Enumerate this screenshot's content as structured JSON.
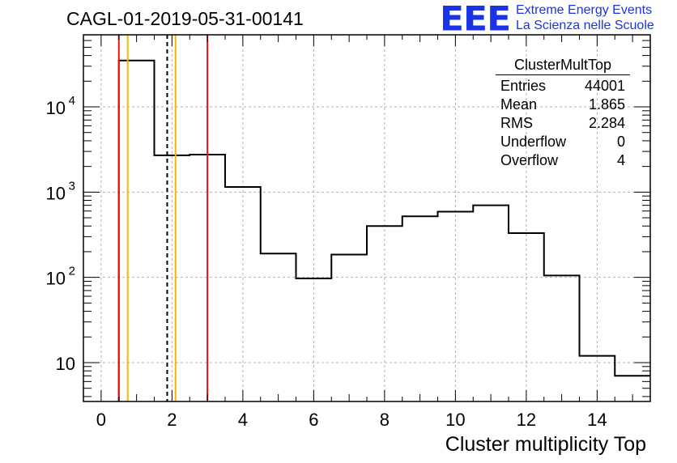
{
  "header": {
    "title": "CAGL-01-2019-05-31-00141",
    "logo_text": "EEE",
    "tagline_1": "Extreme Energy Events",
    "tagline_2": "La Scienza nelle Scuole"
  },
  "stats_box": {
    "title": "ClusterMultTop",
    "rows": [
      {
        "label": "Entries",
        "value": "44001"
      },
      {
        "label": "Mean",
        "value": "1.865"
      },
      {
        "label": "RMS",
        "value": "2.284"
      },
      {
        "label": "Underflow",
        "value": "0"
      },
      {
        "label": "Overflow",
        "value": "4"
      }
    ]
  },
  "chart_data": {
    "type": "bar",
    "style": "step-histogram",
    "xlabel": "Cluster multiplicity Top",
    "ylabel": "",
    "x_ticks": [
      "0",
      "2",
      "4",
      "6",
      "8",
      "10",
      "12",
      "14"
    ],
    "y_ticks": [
      {
        "value": 10,
        "label": "10",
        "exp": ""
      },
      {
        "value": 100,
        "label": "10",
        "exp": "2"
      },
      {
        "value": 1000,
        "label": "10",
        "exp": "3"
      },
      {
        "value": 10000,
        "label": "10",
        "exp": "4"
      }
    ],
    "xlim": [
      -0.5,
      15.5
    ],
    "ylim": [
      3.5,
      70000
    ],
    "log_y": true,
    "grid": true,
    "bin_edges": [
      0.5,
      1.5,
      2.5,
      3.5,
      4.5,
      5.5,
      6.5,
      7.5,
      8.5,
      9.5,
      10.5,
      11.5,
      12.5,
      13.5,
      14.5,
      15.5
    ],
    "values": [
      35000,
      2700,
      2750,
      1150,
      190,
      97,
      185,
      400,
      520,
      590,
      700,
      330,
      105,
      12,
      7
    ],
    "vertical_lines": [
      {
        "x": 0.5,
        "color": "#ee1111",
        "style": "solid"
      },
      {
        "x": 0.75,
        "color": "#f5b800",
        "style": "solid"
      },
      {
        "x": 1.865,
        "color": "#000000",
        "style": "dashed"
      },
      {
        "x": 2.1,
        "color": "#f5b800",
        "style": "solid"
      },
      {
        "x": 3.0,
        "color": "#ee1111",
        "style": "solid"
      }
    ]
  }
}
